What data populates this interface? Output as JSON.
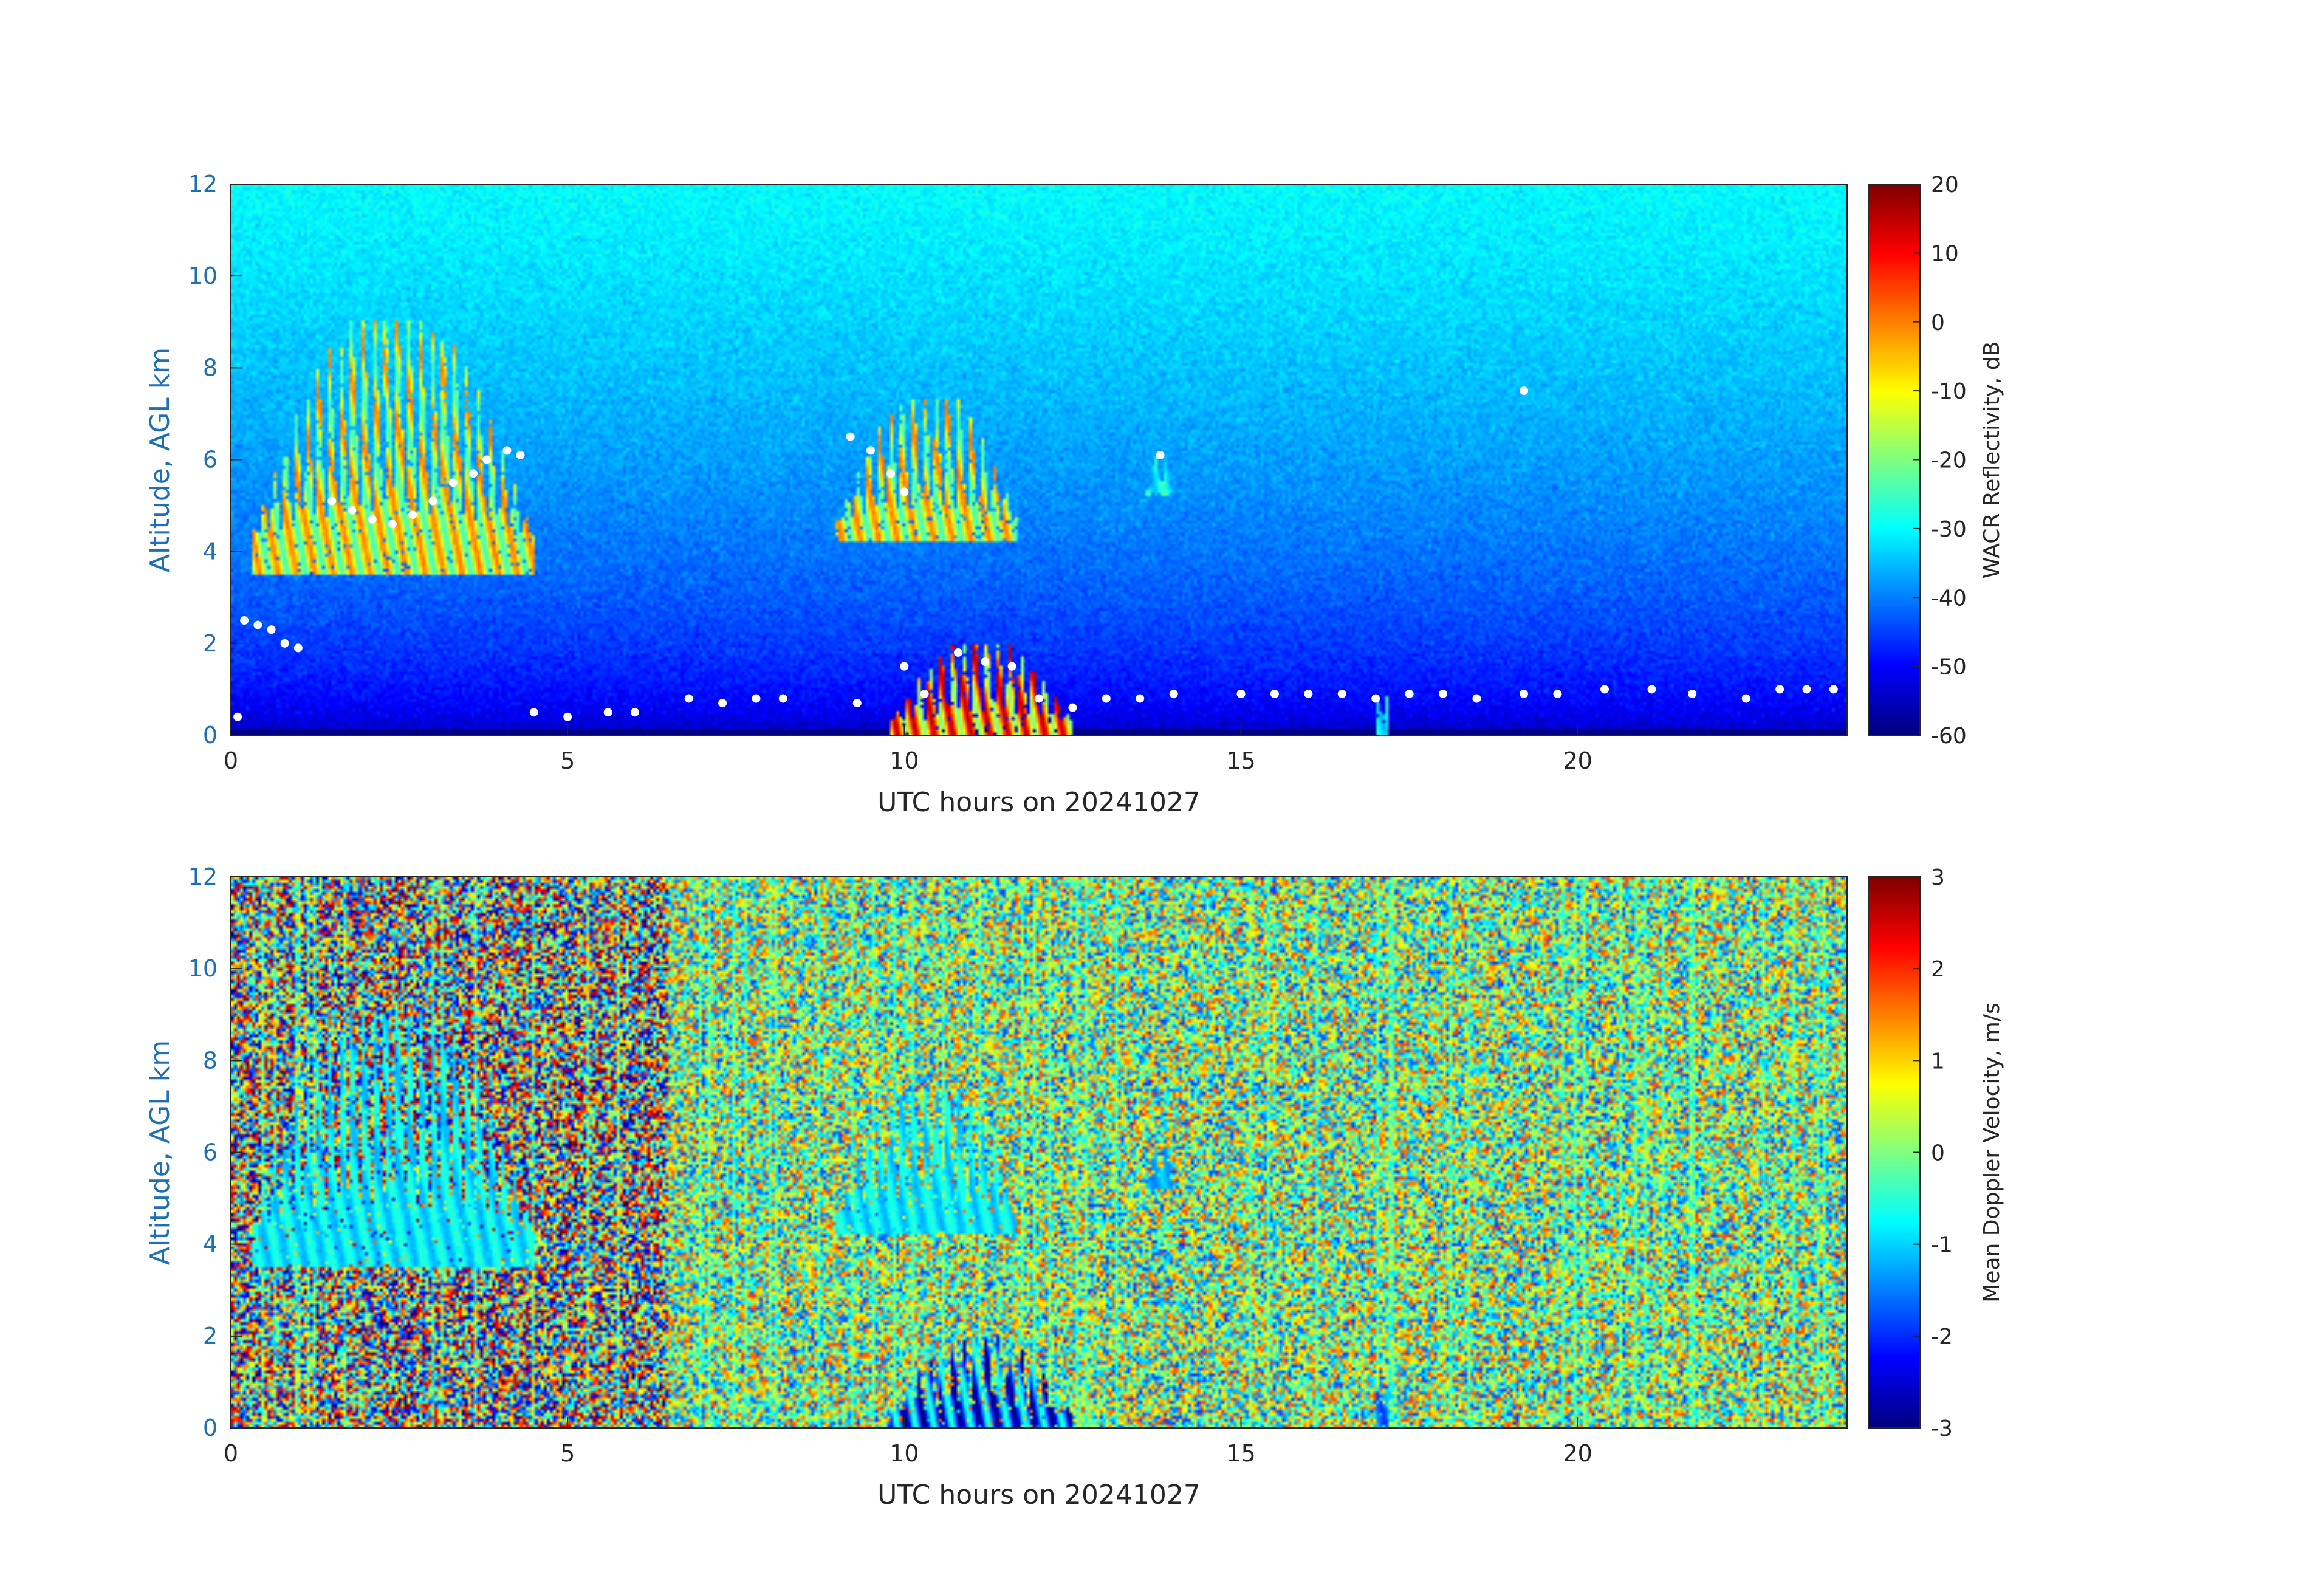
{
  "chart_data": [
    {
      "type": "heatmap",
      "xlabel": "UTC hours on 20241027",
      "ylabel": "Altitude, AGL km",
      "xlim": [
        0,
        24
      ],
      "ylim": [
        0,
        12
      ],
      "x_ticks": [
        "0",
        "5",
        "10",
        "15",
        "20"
      ],
      "y_ticks": [
        "0",
        "2",
        "4",
        "6",
        "8",
        "10",
        "12"
      ],
      "colorbar": {
        "label": "WACR Reflectivity, dB",
        "range": [
          -60,
          20
        ],
        "ticks": [
          "20",
          "10",
          "0",
          "-10",
          "-20",
          "-30",
          "-40",
          "-50",
          "-60"
        ],
        "colormap": "jet"
      },
      "background": {
        "description": "noise floor increasing from about -60 dB near the surface to about -30 dB at 12 km"
      },
      "features": [
        {
          "x_range": [
            0.3,
            4.5
          ],
          "y_range": [
            3.5,
            9.0
          ],
          "value_range": [
            -25,
            0
          ]
        },
        {
          "x_range": [
            9.0,
            11.7
          ],
          "y_range": [
            4.2,
            7.3
          ],
          "value_range": [
            -25,
            0
          ]
        },
        {
          "x_range": [
            9.8,
            12.5
          ],
          "y_range": [
            0.0,
            2.0
          ],
          "value_range": [
            -20,
            15
          ]
        },
        {
          "x_range": [
            13.6,
            14.0
          ],
          "y_range": [
            5.2,
            6.2
          ],
          "value_range": [
            -35,
            -25
          ]
        },
        {
          "x_range": [
            17.0,
            17.2
          ],
          "y_range": [
            0.0,
            1.4
          ],
          "value_range": [
            -35,
            -25
          ]
        }
      ],
      "ceilometer_cloud_base": {
        "marker_color": "#ffffff",
        "points": [
          [
            0.2,
            2.5
          ],
          [
            0.4,
            2.4
          ],
          [
            0.6,
            2.3
          ],
          [
            0.8,
            2.0
          ],
          [
            1.0,
            1.9
          ],
          [
            1.5,
            5.1
          ],
          [
            1.8,
            4.9
          ],
          [
            2.1,
            4.7
          ],
          [
            2.4,
            4.6
          ],
          [
            2.7,
            4.8
          ],
          [
            3.0,
            5.1
          ],
          [
            3.3,
            5.5
          ],
          [
            3.6,
            5.7
          ],
          [
            3.8,
            6.0
          ],
          [
            4.1,
            6.2
          ],
          [
            4.3,
            6.1
          ],
          [
            0.1,
            0.4
          ],
          [
            4.5,
            0.5
          ],
          [
            5.0,
            0.4
          ],
          [
            5.6,
            0.5
          ],
          [
            6.0,
            0.5
          ],
          [
            6.8,
            0.8
          ],
          [
            7.3,
            0.7
          ],
          [
            7.8,
            0.8
          ],
          [
            8.2,
            0.8
          ],
          [
            9.2,
            6.5
          ],
          [
            9.5,
            6.2
          ],
          [
            9.8,
            5.7
          ],
          [
            10.0,
            5.3
          ],
          [
            9.3,
            0.7
          ],
          [
            10.0,
            1.5
          ],
          [
            10.3,
            0.9
          ],
          [
            10.8,
            1.8
          ],
          [
            11.2,
            1.6
          ],
          [
            11.6,
            1.5
          ],
          [
            12.0,
            0.8
          ],
          [
            12.5,
            0.6
          ],
          [
            13.0,
            0.8
          ],
          [
            13.5,
            0.8
          ],
          [
            14.0,
            0.9
          ],
          [
            13.8,
            6.1
          ],
          [
            15.0,
            0.9
          ],
          [
            15.5,
            0.9
          ],
          [
            16.0,
            0.9
          ],
          [
            16.5,
            0.9
          ],
          [
            17.0,
            0.8
          ],
          [
            17.5,
            0.9
          ],
          [
            18.0,
            0.9
          ],
          [
            18.5,
            0.8
          ],
          [
            19.2,
            0.9
          ],
          [
            19.7,
            0.9
          ],
          [
            20.4,
            1.0
          ],
          [
            21.1,
            1.0
          ],
          [
            21.7,
            0.9
          ],
          [
            22.5,
            0.8
          ],
          [
            23.0,
            1.0
          ],
          [
            23.4,
            1.0
          ],
          [
            23.8,
            1.0
          ],
          [
            19.2,
            7.5
          ]
        ]
      }
    },
    {
      "type": "heatmap",
      "xlabel": "UTC hours on 20241027",
      "ylabel": "Altitude, AGL km",
      "xlim": [
        0,
        24
      ],
      "ylim": [
        0,
        12
      ],
      "x_ticks": [
        "0",
        "5",
        "10",
        "15",
        "20"
      ],
      "y_ticks": [
        "0",
        "2",
        "4",
        "6",
        "8",
        "10",
        "12"
      ],
      "colorbar": {
        "label": "Mean Doppler Velocity, m/s",
        "range": [
          -3,
          3
        ],
        "ticks": [
          "3",
          "2",
          "1",
          "0",
          "-1",
          "-2",
          "-3"
        ],
        "colormap": "jet"
      },
      "background": {
        "description": "random noise spanning the full velocity range"
      },
      "features": [
        {
          "x_range": [
            0.3,
            4.5
          ],
          "y_range": [
            3.5,
            9.0
          ],
          "value_range": [
            -1.2,
            -0.5
          ]
        },
        {
          "x_range": [
            9.0,
            11.7
          ],
          "y_range": [
            4.2,
            7.3
          ],
          "value_range": [
            -1.2,
            -0.5
          ]
        },
        {
          "x_range": [
            9.8,
            12.5
          ],
          "y_range": [
            0.0,
            2.0
          ],
          "value_range": [
            -3.0,
            -0.5
          ]
        },
        {
          "x_range": [
            13.6,
            14.0
          ],
          "y_range": [
            5.2,
            6.2
          ],
          "value_range": [
            -1.5,
            -1.0
          ]
        },
        {
          "x_range": [
            17.0,
            17.2
          ],
          "y_range": [
            0.0,
            1.4
          ],
          "value_range": [
            -2.0,
            -1.0
          ]
        }
      ]
    }
  ]
}
